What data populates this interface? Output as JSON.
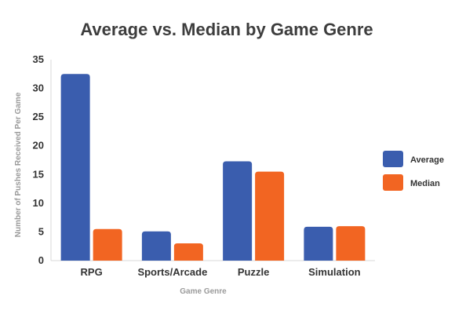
{
  "chart_data": {
    "type": "bar",
    "title": "Average vs. Median by Game Genre",
    "xlabel": "Game Genre",
    "ylabel": "Number of Pushes Received Per Game",
    "categories": [
      "RPG",
      "Sports/Arcade",
      "Puzzle",
      "Simulation"
    ],
    "series": [
      {
        "name": "Average",
        "color": "#3a5dae",
        "values": [
          32.5,
          5.1,
          17.3,
          5.9
        ]
      },
      {
        "name": "Median",
        "color": "#f26522",
        "values": [
          5.5,
          3.0,
          15.5,
          6.0
        ]
      }
    ],
    "ylim": [
      0,
      35
    ],
    "yticks": [
      0,
      5,
      10,
      15,
      20,
      25,
      30,
      35
    ],
    "grid": false,
    "legend": "right"
  }
}
